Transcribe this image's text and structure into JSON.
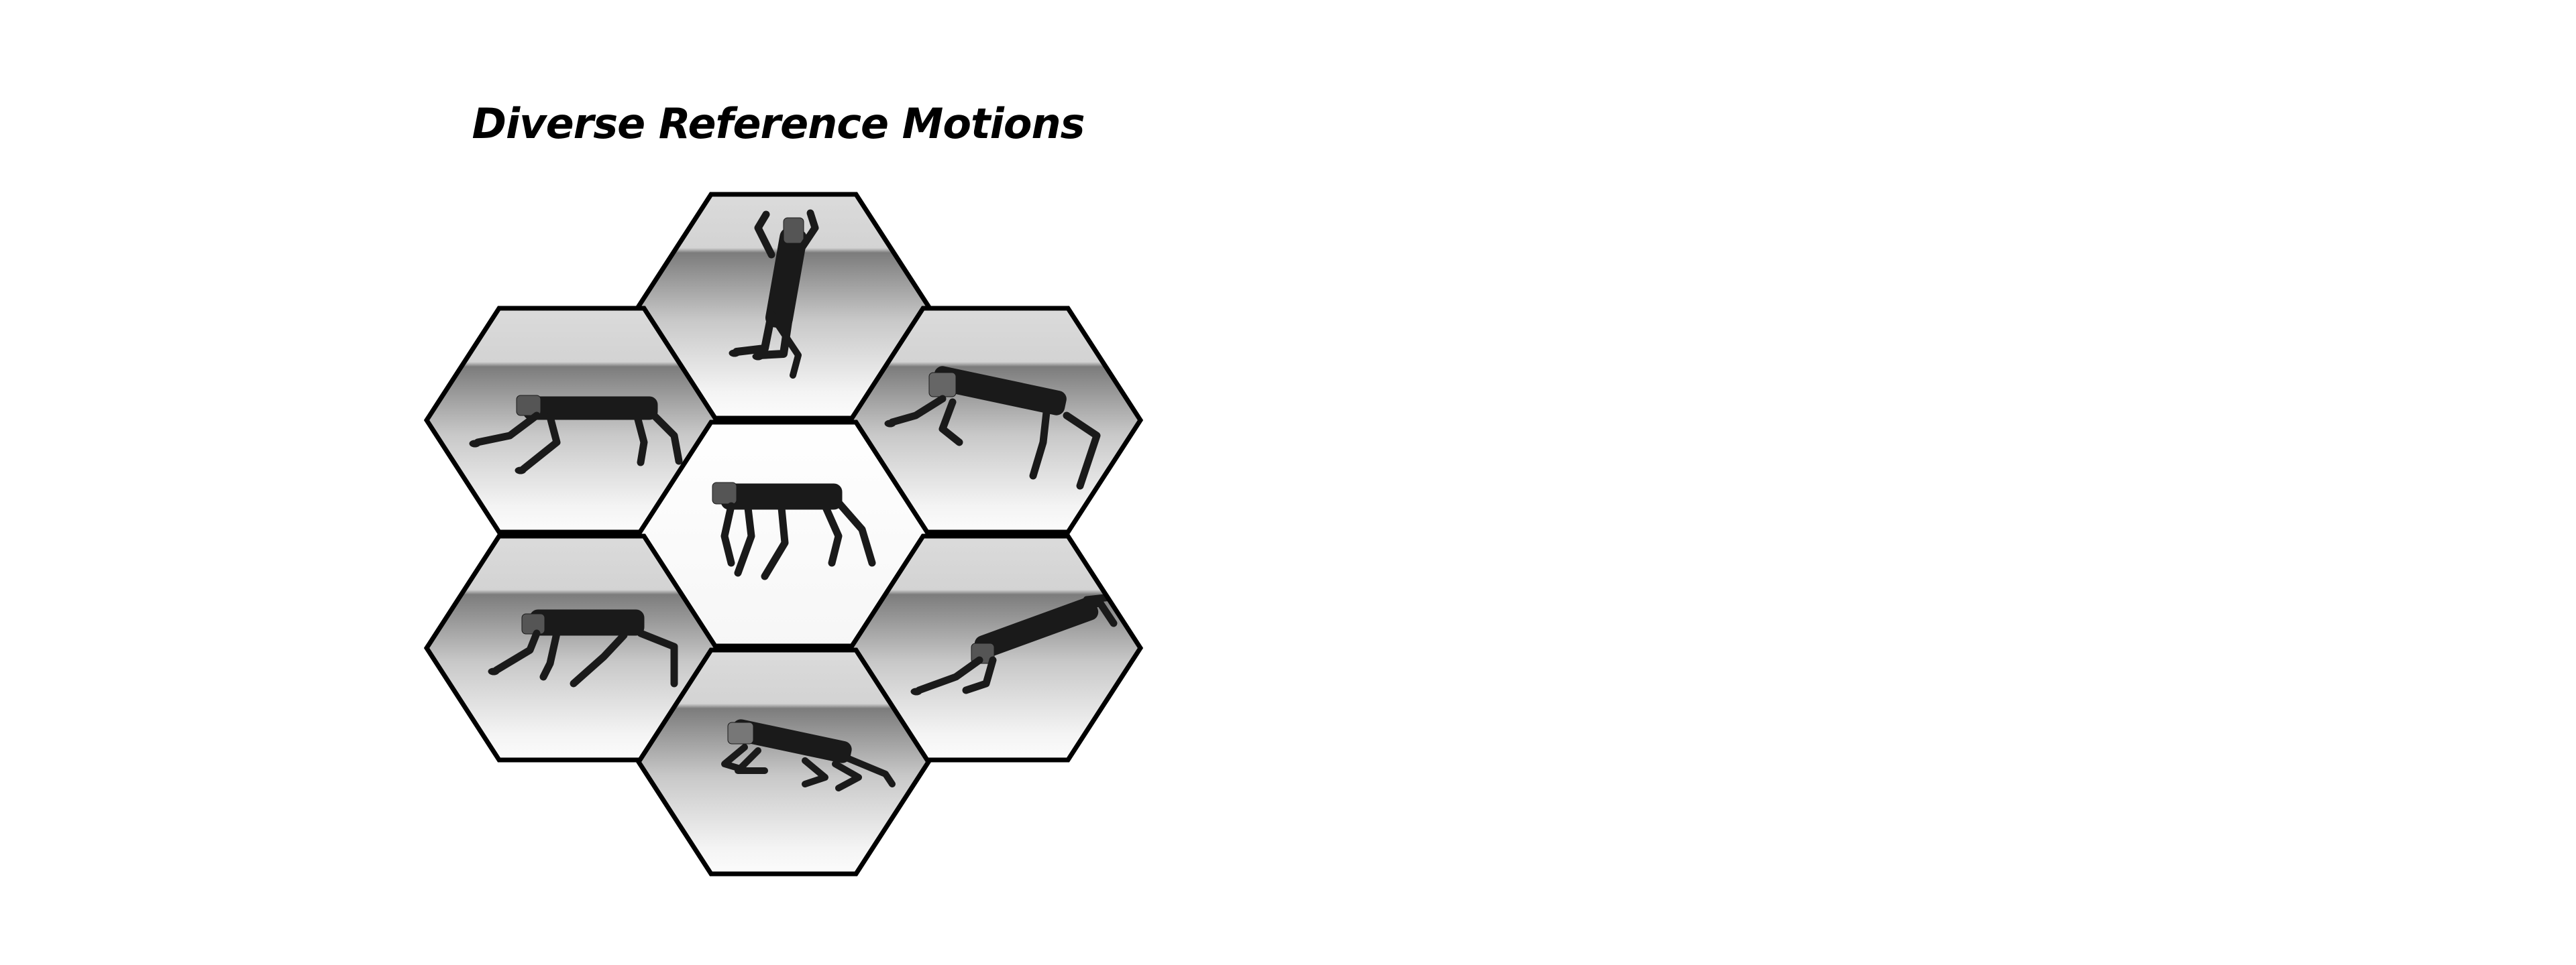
{
  "figure": {
    "title": "Diverse Reference Motions"
  },
  "panels": [
    {
      "id": "top",
      "pose": "rearing-upright",
      "background": "gradient"
    },
    {
      "id": "upper-left",
      "pose": "trotting",
      "background": "gradient"
    },
    {
      "id": "upper-right",
      "pose": "pouncing-forward",
      "background": "gradient"
    },
    {
      "id": "center",
      "pose": "standing-walk",
      "background": "plain"
    },
    {
      "id": "lower-left",
      "pose": "crouched-walk",
      "background": "gradient"
    },
    {
      "id": "lower-right",
      "pose": "leaping",
      "background": "gradient"
    },
    {
      "id": "bottom",
      "pose": "lying-stretched",
      "background": "gradient"
    }
  ],
  "colors": {
    "outline": "#000000",
    "robot": "#1a1a1a",
    "floor_dark": "#9a9a9a",
    "floor_light": "#ffffff"
  }
}
